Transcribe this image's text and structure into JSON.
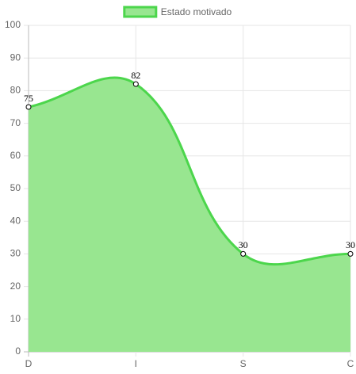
{
  "chart_data": {
    "type": "line",
    "categories": [
      "D",
      "I",
      "S",
      "C"
    ],
    "series": [
      {
        "name": "Estado motivado",
        "color": "#4cd64c",
        "fill_color": "#98e690",
        "values": [
          75,
          82,
          30,
          30
        ]
      }
    ],
    "ylim": [
      0,
      100
    ],
    "yticks": [
      0,
      10,
      20,
      30,
      40,
      50,
      60,
      70,
      80,
      90,
      100
    ],
    "grid": true,
    "legend": "top",
    "tension": 0.4
  }
}
